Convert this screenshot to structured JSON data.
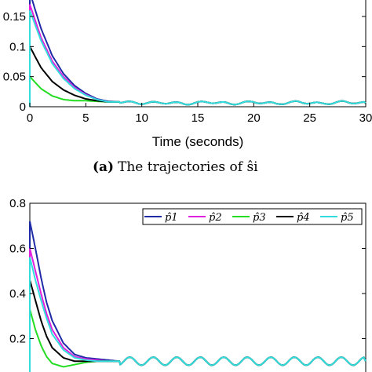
{
  "chart_data": [
    {
      "type": "line",
      "caption_label": "(a)",
      "caption_text": "The trajectories of ŝi",
      "xlabel": "Time (seconds)",
      "ylabel": "",
      "xlim": [
        0,
        30
      ],
      "ylim": [
        0,
        0.18
      ],
      "x_ticks": [
        "0",
        "5",
        "10",
        "15",
        "20",
        "25",
        "30"
      ],
      "y_ticks": [
        "0",
        "0.05",
        "0.1",
        "0.15"
      ],
      "x_tick_values": [
        0,
        5,
        10,
        15,
        20,
        25,
        30
      ],
      "y_tick_values": [
        0,
        0.05,
        0.1,
        0.15
      ],
      "legend": "none",
      "series": [
        {
          "color": "#1f2aa6",
          "x": [
            0,
            1,
            2,
            3,
            4,
            5,
            6,
            7,
            8,
            9,
            10,
            12,
            14,
            16,
            18,
            20,
            22,
            24,
            26,
            28,
            30
          ],
          "y": [
            0.19,
            0.13,
            0.085,
            0.055,
            0.035,
            0.022,
            0.013,
            0.009,
            0.008,
            0.007,
            0.006,
            0.007,
            0.005,
            0.008,
            0.005,
            0.008,
            0.005,
            0.008,
            0.005,
            0.008,
            0.006
          ]
        },
        {
          "color": "#e020e0",
          "x": [
            0,
            1,
            2,
            3,
            4,
            5,
            6,
            7,
            8,
            9,
            10,
            12,
            14,
            16,
            18,
            20,
            22,
            24,
            26,
            28,
            30
          ],
          "y": [
            0.17,
            0.115,
            0.076,
            0.05,
            0.032,
            0.02,
            0.012,
            0.008,
            0.008,
            0.007,
            0.006,
            0.007,
            0.005,
            0.008,
            0.005,
            0.008,
            0.005,
            0.008,
            0.005,
            0.008,
            0.006
          ]
        },
        {
          "color": "#22dd22",
          "x": [
            0,
            1,
            2,
            3,
            4,
            5,
            6,
            7,
            8,
            9,
            10,
            12,
            14,
            16,
            18,
            20,
            22,
            24,
            26,
            28,
            30
          ],
          "y": [
            0.05,
            0.03,
            0.018,
            0.012,
            0.01,
            0.01,
            0.009,
            0.008,
            0.008,
            0.007,
            0.006,
            0.007,
            0.005,
            0.008,
            0.005,
            0.008,
            0.005,
            0.008,
            0.005,
            0.008,
            0.006
          ]
        },
        {
          "color": "#000000",
          "x": [
            0,
            1,
            2,
            3,
            4,
            5,
            6,
            7,
            8,
            9,
            10,
            12,
            14,
            16,
            18,
            20,
            22,
            24,
            26,
            28,
            30
          ],
          "y": [
            0.1,
            0.065,
            0.042,
            0.028,
            0.019,
            0.013,
            0.01,
            0.008,
            0.008,
            0.007,
            0.006,
            0.007,
            0.005,
            0.008,
            0.005,
            0.008,
            0.005,
            0.008,
            0.005,
            0.008,
            0.006
          ]
        },
        {
          "color": "#33dddd",
          "x": [
            0,
            1,
            2,
            3,
            4,
            5,
            6,
            7,
            8,
            9,
            10,
            12,
            14,
            16,
            18,
            20,
            22,
            24,
            26,
            28,
            30
          ],
          "y": [
            0.16,
            0.11,
            0.072,
            0.047,
            0.03,
            0.019,
            0.012,
            0.008,
            0.008,
            0.007,
            0.006,
            0.007,
            0.005,
            0.008,
            0.005,
            0.008,
            0.005,
            0.008,
            0.005,
            0.008,
            0.006
          ]
        }
      ]
    },
    {
      "type": "line",
      "xlabel": "",
      "ylabel": "",
      "xlim": [
        0,
        30
      ],
      "ylim": [
        0,
        0.8
      ],
      "x_ticks": [],
      "y_ticks": [
        "0.2",
        "0.4",
        "0.6",
        "0.8"
      ],
      "y_tick_values": [
        0.2,
        0.4,
        0.6,
        0.8
      ],
      "legend": "top-right",
      "series": [
        {
          "name": "p̂1",
          "color": "#1f2aa6",
          "x": [
            0,
            0.5,
            1,
            1.5,
            2,
            3,
            4,
            5,
            6,
            7,
            8,
            9,
            10,
            12,
            14,
            16,
            18,
            20,
            22,
            24,
            26,
            28,
            30
          ],
          "y": [
            0.72,
            0.6,
            0.47,
            0.36,
            0.28,
            0.18,
            0.13,
            0.115,
            0.11,
            0.105,
            0.1,
            0.1,
            0.1,
            0.1,
            0.1,
            0.1,
            0.1,
            0.1,
            0.1,
            0.1,
            0.1,
            0.1,
            0.1
          ]
        },
        {
          "name": "p̂2",
          "color": "#e020e0",
          "x": [
            0,
            0.5,
            1,
            1.5,
            2,
            3,
            4,
            5,
            6,
            7,
            8,
            9,
            10,
            12,
            14,
            16,
            18,
            20,
            22,
            24,
            26,
            28,
            30
          ],
          "y": [
            0.6,
            0.5,
            0.4,
            0.31,
            0.24,
            0.16,
            0.12,
            0.11,
            0.105,
            0.1,
            0.1,
            0.1,
            0.1,
            0.1,
            0.1,
            0.1,
            0.1,
            0.1,
            0.1,
            0.1,
            0.1,
            0.1,
            0.1
          ]
        },
        {
          "name": "p̂3",
          "color": "#22dd22",
          "x": [
            0,
            0.5,
            1,
            1.5,
            2,
            3,
            4,
            5,
            6,
            7,
            8,
            9,
            10,
            12,
            14,
            16,
            18,
            20,
            22,
            24,
            26,
            28,
            30
          ],
          "y": [
            0.33,
            0.24,
            0.17,
            0.12,
            0.09,
            0.075,
            0.085,
            0.095,
            0.1,
            0.1,
            0.1,
            0.1,
            0.1,
            0.1,
            0.1,
            0.1,
            0.1,
            0.1,
            0.1,
            0.1,
            0.1,
            0.1,
            0.1
          ]
        },
        {
          "name": "p̂4",
          "color": "#000000",
          "x": [
            0,
            0.5,
            1,
            1.5,
            2,
            3,
            4,
            5,
            6,
            7,
            8,
            9,
            10,
            12,
            14,
            16,
            18,
            20,
            22,
            24,
            26,
            28,
            30
          ],
          "y": [
            0.46,
            0.37,
            0.28,
            0.21,
            0.16,
            0.115,
            0.1,
            0.1,
            0.1,
            0.1,
            0.1,
            0.1,
            0.1,
            0.1,
            0.1,
            0.1,
            0.1,
            0.1,
            0.1,
            0.1,
            0.1,
            0.1,
            0.1
          ]
        },
        {
          "name": "p̂5",
          "color": "#33dddd",
          "x": [
            0,
            0.5,
            1,
            1.5,
            2,
            3,
            4,
            5,
            6,
            7,
            8,
            9,
            10,
            12,
            14,
            16,
            18,
            20,
            22,
            24,
            26,
            28,
            30
          ],
          "y": [
            0.56,
            0.46,
            0.37,
            0.29,
            0.22,
            0.15,
            0.115,
            0.105,
            0.1,
            0.1,
            0.1,
            0.1,
            0.1,
            0.1,
            0.1,
            0.1,
            0.1,
            0.1,
            0.1,
            0.1,
            0.1,
            0.1,
            0.1
          ]
        }
      ]
    }
  ]
}
